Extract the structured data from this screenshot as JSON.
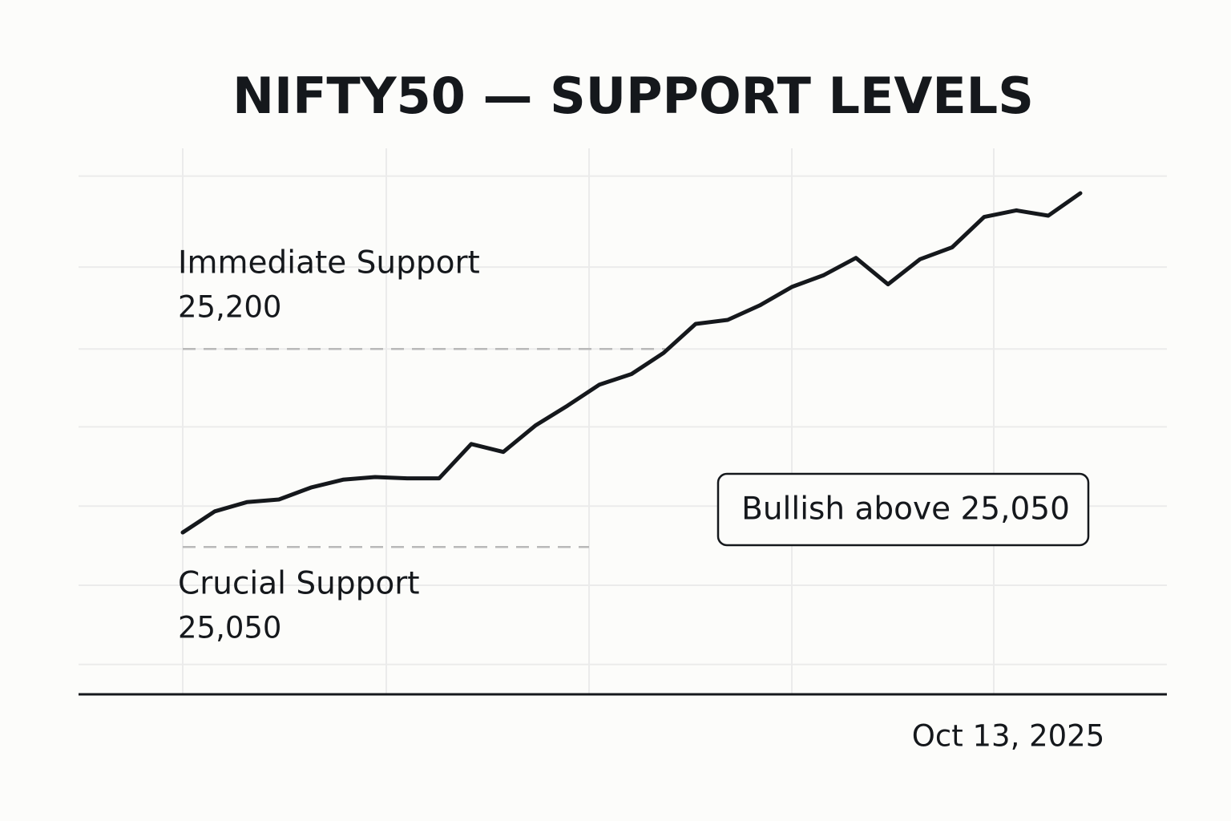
{
  "chart_data": {
    "type": "line",
    "title": "NIFTY50 — SUPPORT LEVELS",
    "categories": [
      null,
      null,
      null,
      null,
      null,
      null,
      null,
      null,
      null,
      null,
      null,
      null,
      null,
      null,
      null,
      null,
      null,
      null,
      null,
      null,
      null,
      null,
      null,
      null,
      null,
      null,
      null,
      null,
      null
    ],
    "values": [
      25061,
      25077,
      25084,
      25086,
      25095,
      25101,
      25103,
      25102,
      25102,
      25128,
      25122,
      25142,
      25157,
      25173,
      25181,
      25197,
      25219,
      25222,
      25233,
      25247,
      25256,
      25269,
      25249,
      25268,
      25277,
      25300,
      25305,
      25301,
      25318
    ],
    "color": "#15181c",
    "ylim": [
      24939,
      25352
    ],
    "y_gridlines": [
      25331,
      25262,
      25200,
      25141,
      25081,
      25021,
      24961
    ],
    "grid": true,
    "supports": [
      {
        "label": "Immediate Support",
        "value": 25200,
        "value_label": "25,200"
      },
      {
        "label": "Crucial Support",
        "value": 25050,
        "value_label": "25,050"
      }
    ],
    "callout": "Bullish above 25,050",
    "date_label": "Oct 13, 2025"
  }
}
